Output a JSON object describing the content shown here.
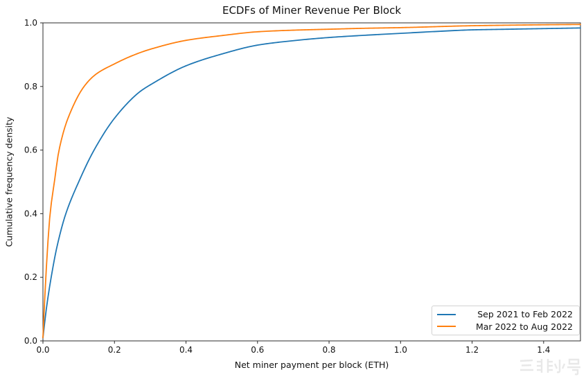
{
  "title": "ECDFs of Miner Revenue Per Block",
  "watermark": {
    "logo_icon": "feixiaohao-bars-logo",
    "text": "非小号",
    "color": "#e8e8e8"
  },
  "frame_color": "#2b2b2b",
  "tick_color": "#2b2b2b",
  "chart_data": {
    "type": "line",
    "title": "ECDFs of Miner Revenue Per Block",
    "xlabel": "Net miner payment per block (ETH)",
    "ylabel": "Cumulative frequency density",
    "xlim": [
      0,
      1.503
    ],
    "ylim": [
      0,
      1.0
    ],
    "grid": false,
    "legend_position": "lower right",
    "x_ticks": [
      0.0,
      0.2,
      0.4,
      0.6,
      0.8,
      1.0,
      1.2,
      1.4
    ],
    "x_tick_labels": [
      "0.0",
      "0.2",
      "0.4",
      "0.6",
      "0.8",
      "1.0",
      "1.2",
      "1.4"
    ],
    "y_ticks": [
      0.0,
      0.2,
      0.4,
      0.6,
      0.8,
      1.0
    ],
    "y_tick_labels": [
      "0.0",
      "0.2",
      "0.4",
      "0.6",
      "0.8",
      "1.0"
    ],
    "series": [
      {
        "name": "Sep 2021 to Feb 2022",
        "color": "#1f77b4",
        "points": [
          [
            0,
            0.01
          ],
          [
            0.01,
            0.105
          ],
          [
            0.023,
            0.2
          ],
          [
            0.04,
            0.3
          ],
          [
            0.064,
            0.4
          ],
          [
            0.1,
            0.5
          ],
          [
            0.143,
            0.6
          ],
          [
            0.2,
            0.7
          ],
          [
            0.267,
            0.78
          ],
          [
            0.3,
            0.805
          ],
          [
            0.4,
            0.865
          ],
          [
            0.5,
            0.902
          ],
          [
            0.6,
            0.93
          ],
          [
            0.7,
            0.944
          ],
          [
            0.8,
            0.954
          ],
          [
            0.9,
            0.961
          ],
          [
            1.0,
            0.967
          ],
          [
            1.1,
            0.973
          ],
          [
            1.2,
            0.978
          ],
          [
            1.3,
            0.98
          ],
          [
            1.4,
            0.982
          ],
          [
            1.503,
            0.984
          ]
        ]
      },
      {
        "name": "Mar 2022 to Aug 2022",
        "color": "#ff7f0e",
        "points": [
          [
            0,
            0.01
          ],
          [
            0.008,
            0.2
          ],
          [
            0.02,
            0.4
          ],
          [
            0.032,
            0.5
          ],
          [
            0.045,
            0.6
          ],
          [
            0.07,
            0.7
          ],
          [
            0.115,
            0.8
          ],
          [
            0.15,
            0.84
          ],
          [
            0.2,
            0.871
          ],
          [
            0.25,
            0.897
          ],
          [
            0.3,
            0.917
          ],
          [
            0.4,
            0.945
          ],
          [
            0.5,
            0.96
          ],
          [
            0.6,
            0.972
          ],
          [
            0.7,
            0.977
          ],
          [
            0.8,
            0.98
          ],
          [
            0.9,
            0.983
          ],
          [
            1.0,
            0.985
          ],
          [
            1.2,
            0.991
          ],
          [
            1.4,
            0.994
          ],
          [
            1.503,
            0.995
          ]
        ]
      }
    ]
  }
}
